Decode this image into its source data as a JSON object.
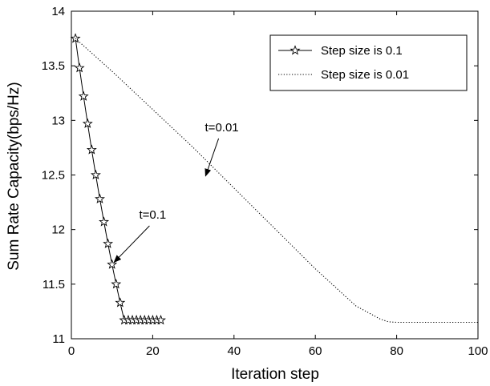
{
  "chart_data": {
    "type": "line",
    "title": "",
    "xlabel": "Iteration step",
    "ylabel": "Sum Rate Capacity(bps/Hz)",
    "xlim": [
      0,
      100
    ],
    "ylim": [
      11,
      14
    ],
    "xticks": [
      0,
      20,
      40,
      60,
      80,
      100
    ],
    "yticks": [
      11,
      11.5,
      12,
      12.5,
      13,
      13.5,
      14
    ],
    "grid": false,
    "legend_position": "top-right",
    "series": [
      {
        "name": "Step size is 0.1",
        "style": "solid",
        "marker": "star",
        "color": "#000000",
        "x": [
          1,
          2,
          3,
          4,
          5,
          6,
          7,
          8,
          9,
          10,
          11,
          12,
          13,
          14,
          15,
          16,
          17,
          18,
          19,
          20,
          21,
          22
        ],
        "y": [
          13.75,
          13.48,
          13.22,
          12.97,
          12.73,
          12.5,
          12.28,
          12.07,
          11.87,
          11.68,
          11.5,
          11.33,
          11.17,
          11.17,
          11.17,
          11.17,
          11.17,
          11.17,
          11.17,
          11.17,
          11.17,
          11.17
        ]
      },
      {
        "name": "Step size is 0.01",
        "style": "dotted",
        "marker": "none",
        "color": "#000000",
        "x": [
          1,
          10,
          20,
          30,
          40,
          50,
          60,
          70,
          76,
          78,
          80,
          90,
          100
        ],
        "y": [
          13.75,
          13.45,
          13.1,
          12.75,
          12.38,
          12.01,
          11.64,
          11.3,
          11.18,
          11.155,
          11.15,
          11.15,
          11.15
        ]
      }
    ],
    "annotations": [
      {
        "text": "t=0.01",
        "x": 37,
        "y": 12.9,
        "arrow_to": [
          33,
          12.49
        ]
      },
      {
        "text": "t=0.1",
        "x": 20,
        "y": 12.1,
        "arrow_to": [
          10.5,
          11.7
        ]
      }
    ]
  }
}
